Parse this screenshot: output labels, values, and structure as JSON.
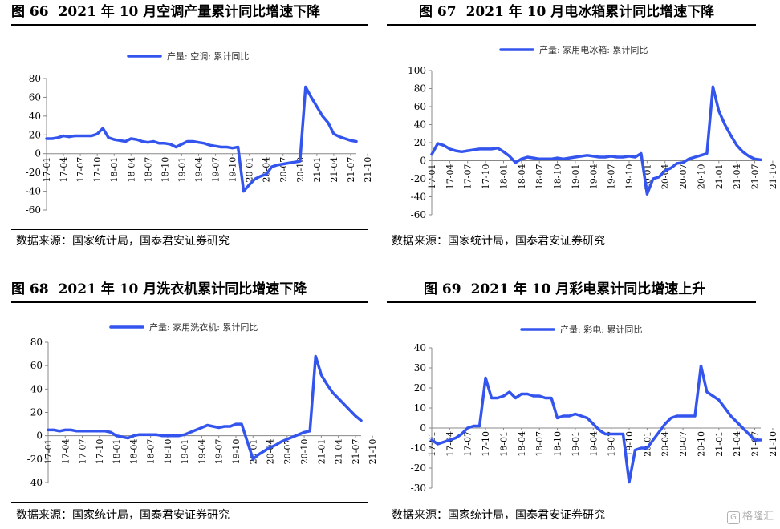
{
  "watermark": "格隆汇",
  "charts": [
    {
      "id": "c66",
      "figure_no": "图 66",
      "title": "2021 年 10 月空调产量累计同比增速下降",
      "source": "数据来源：国家统计局，国泰君安证券研究",
      "chart_data": {
        "type": "line",
        "title": "2021 年 10 月空调产量累计同比增速下降",
        "legend": "top",
        "series": [
          {
            "name": "产量: 空调: 累计同比",
            "color": "#3355ee",
            "values": [
              16,
              16,
              17,
              19,
              18,
              19,
              19,
              19,
              19,
              21,
              27,
              17,
              15,
              14,
              13,
              16,
              15,
              13,
              12,
              13,
              11,
              11,
              10,
              7,
              10,
              13,
              13,
              12,
              11,
              9,
              8,
              7,
              7,
              6,
              7,
              -40,
              -33,
              -27,
              -24,
              -22,
              -14,
              -12,
              -11,
              -10,
              -9,
              -8,
              71,
              60,
              50,
              40,
              33,
              21,
              18,
              16,
              14,
              13
            ]
          }
        ],
        "x_tick_labels": [
          "17-01",
          "17-04",
          "17-07",
          "17-10",
          "18-01",
          "18-04",
          "18-07",
          "18-10",
          "19-01",
          "19-04",
          "19-07",
          "19-10",
          "20-01",
          "20-04",
          "20-07",
          "20-10",
          "21-01",
          "21-04",
          "21-07",
          "21-10"
        ],
        "ylim": [
          -60,
          80
        ],
        "yticks": [
          -60,
          -40,
          -20,
          0,
          20,
          40,
          60,
          80
        ],
        "grid": false
      }
    },
    {
      "id": "c67",
      "figure_no": "图 67",
      "title": "2021 年 10 月电冰箱累计同比增速下降",
      "source": "数据来源：国家统计局，国泰君安证券研究",
      "chart_data": {
        "type": "line",
        "title": "2021 年 10 月电冰箱累计同比增速下降",
        "legend": "top",
        "series": [
          {
            "name": "产量: 家用电冰箱: 累计同比",
            "color": "#3355ee",
            "values": [
              7,
              19,
              17,
              13,
              11,
              10,
              11,
              12,
              13,
              13,
              13,
              14,
              10,
              5,
              -2,
              2,
              4,
              3,
              2,
              2,
              2,
              3,
              2,
              3,
              4,
              5,
              6,
              5,
              4,
              4,
              5,
              4,
              4,
              5,
              4,
              8,
              -37,
              -20,
              -18,
              -11,
              -8,
              -3,
              -2,
              2,
              4,
              6,
              8,
              82,
              55,
              40,
              28,
              17,
              10,
              5,
              2,
              1
            ]
          }
        ],
        "x_tick_labels": [
          "17-01",
          "17-04",
          "17-07",
          "17-10",
          "18-01",
          "18-04",
          "18-07",
          "18-10",
          "19-01",
          "19-04",
          "19-07",
          "19-10",
          "20-01",
          "20-04",
          "20-07",
          "20-10",
          "21-01",
          "21-04",
          "21-07",
          "21-10"
        ],
        "ylim": [
          -60,
          100
        ],
        "yticks": [
          -60,
          -40,
          -20,
          0,
          20,
          40,
          60,
          80,
          100
        ],
        "grid": false
      }
    },
    {
      "id": "c68",
      "figure_no": "图 68",
      "title": "2021 年 10 月洗衣机累计同比增速下降",
      "source": "数据来源：国家统计局，国泰君安证券研究",
      "chart_data": {
        "type": "line",
        "title": "2021 年 10 月洗衣机累计同比增速下降",
        "legend": "top",
        "series": [
          {
            "name": "产量: 家用洗衣机: 累计同比",
            "color": "#3355ee",
            "values": [
              5,
              5,
              4,
              5,
              5,
              4,
              4,
              4,
              4,
              4,
              4,
              3,
              0,
              -1,
              -2,
              0,
              1,
              1,
              1,
              1,
              0,
              0,
              0,
              0,
              1,
              3,
              5,
              7,
              9,
              8,
              7,
              8,
              8,
              10,
              10,
              -5,
              -20,
              -16,
              -13,
              -10,
              -8,
              -5,
              -3,
              -1,
              1,
              3,
              4,
              68,
              52,
              44,
              37,
              32,
              27,
              22,
              17,
              13
            ]
          }
        ],
        "x_tick_labels": [
          "17-01",
          "17-04",
          "17-07",
          "17-10",
          "18-01",
          "18-04",
          "18-07",
          "18-10",
          "19-01",
          "19-04",
          "19-07",
          "19-10",
          "20-01",
          "20-04",
          "20-07",
          "20-10",
          "21-01",
          "21-04",
          "21-07",
          "21-10"
        ],
        "ylim": [
          -40,
          80
        ],
        "yticks": [
          -40,
          -20,
          0,
          20,
          40,
          60,
          80
        ],
        "grid": false
      }
    },
    {
      "id": "c69",
      "figure_no": "图 69",
      "title": "2021 年 10 月彩电累计同比增速上升",
      "source": "数据来源：国家统计局，国泰君安证券研究",
      "chart_data": {
        "type": "line",
        "title": "2021 年 10 月彩电累计同比增速上升",
        "legend": "top",
        "series": [
          {
            "name": "产量: 彩电: 累计同比",
            "color": "#3355ee",
            "values": [
              -6,
              -8,
              -7,
              -6,
              -5,
              -3,
              0,
              1,
              1,
              25,
              15,
              15,
              16,
              18,
              15,
              17,
              17,
              16,
              16,
              15,
              15,
              5,
              6,
              6,
              7,
              6,
              5,
              2,
              -1,
              -3,
              -3,
              -3,
              -3,
              -27,
              -11,
              -10,
              -10,
              -6,
              -2,
              2,
              5,
              6,
              6,
              6,
              6,
              31,
              18,
              16,
              14,
              10,
              6,
              3,
              0,
              -3,
              -6,
              -6
            ]
          }
        ],
        "x_tick_labels": [
          "17-01",
          "17-04",
          "17-07",
          "17-10",
          "18-01",
          "18-04",
          "18-07",
          "18-10",
          "19-01",
          "19-04",
          "19-07",
          "19-10",
          "20-01",
          "20-04",
          "20-07",
          "20-10",
          "21-01",
          "21-04",
          "21-07",
          "21-10"
        ],
        "ylim": [
          -30,
          40
        ],
        "yticks": [
          -30,
          -20,
          -10,
          0,
          10,
          20,
          30,
          40
        ],
        "grid": false
      }
    }
  ]
}
